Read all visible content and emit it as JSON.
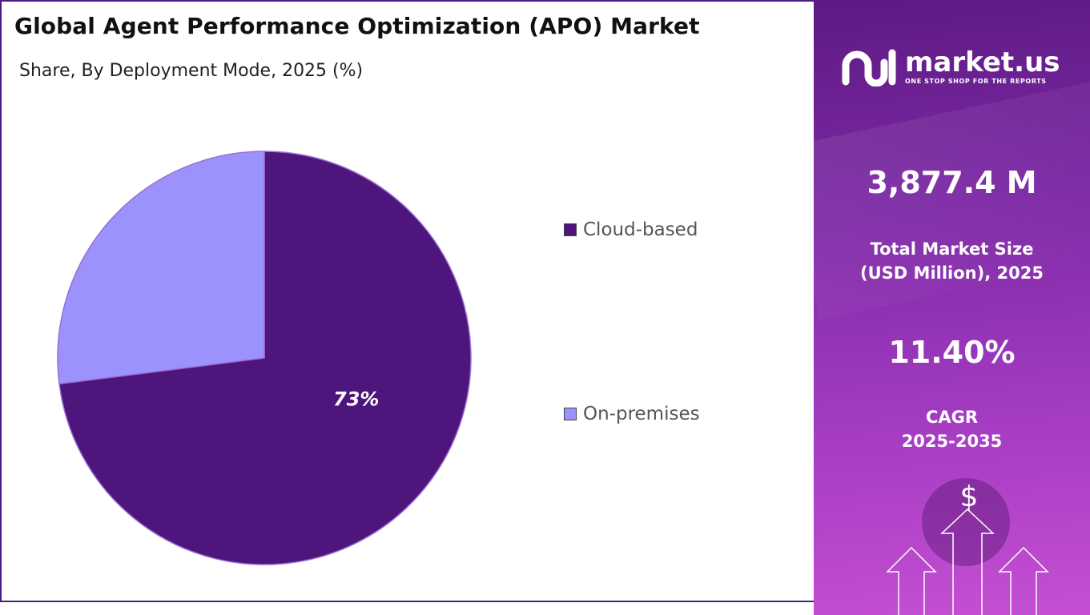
{
  "title": "Global Agent Performance Optimization (APO) Market",
  "subtitle": "Share, By Deployment Mode, 2025 (%)",
  "chart_data": {
    "type": "pie",
    "title": "Global Agent Performance Optimization (APO) Market",
    "subtitle": "Share, By Deployment Mode, 2025 (%)",
    "categories": [
      "Cloud-based",
      "On-premises"
    ],
    "values": [
      73,
      27
    ],
    "unit": "%",
    "colors": [
      "#4e157d",
      "#9c92fe"
    ],
    "data_labels": [
      "73%",
      ""
    ],
    "legend_position": "right"
  },
  "side_panel": {
    "brand_name": "market.us",
    "brand_tagline": "ONE STOP SHOP FOR THE REPORTS",
    "market_size_value": "3,877.4 M",
    "market_size_label_line1": "Total Market Size",
    "market_size_label_line2": "(USD Million), 2025",
    "cagr_value": "11.40%",
    "cagr_label_line1": "CAGR",
    "cagr_label_line2": "2025-2035",
    "currency_symbol": "$"
  }
}
